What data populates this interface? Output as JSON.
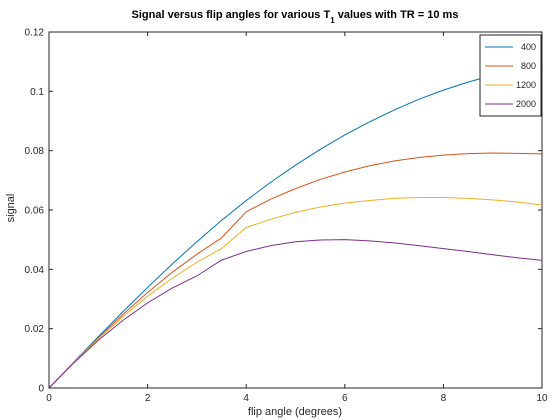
{
  "chart_data": {
    "type": "line",
    "title": {
      "prefix": "Signal versus flip angles for various T",
      "subscript": "1",
      "suffix": " values with TR = 10 ms"
    },
    "xlabel": "flip angle (degrees)",
    "ylabel": "signal",
    "xlim": [
      0,
      10
    ],
    "ylim": [
      0,
      0.12
    ],
    "x_ticks": [
      0,
      2,
      4,
      6,
      8,
      10
    ],
    "y_ticks": [
      0,
      0.02,
      0.04,
      0.06,
      0.08,
      0.1,
      0.12
    ],
    "x_tick_labels": [
      "0",
      "2",
      "4",
      "6",
      "8",
      "10"
    ],
    "y_tick_labels": [
      "0",
      "0.02",
      "0.04",
      "0.06",
      "0.08",
      "0.1",
      "0.12"
    ],
    "grid": false,
    "legend_position": "top-right",
    "x": [
      0,
      0.5,
      1,
      1.5,
      2,
      2.5,
      3,
      3.5,
      4,
      4.5,
      5,
      5.5,
      6,
      6.5,
      7,
      7.5,
      8,
      8.5,
      9,
      9.5,
      10
    ],
    "series": [
      {
        "name": "400",
        "color": "#0072bd",
        "values": [
          0,
          0.0087,
          0.0173,
          0.0257,
          0.0339,
          0.0418,
          0.0493,
          0.0565,
          0.0632,
          0.0694,
          0.0751,
          0.0804,
          0.0853,
          0.0897,
          0.0937,
          0.0973,
          0.1004,
          0.1031,
          0.1054,
          0.1071,
          0.1086
        ]
      },
      {
        "name": "800",
        "color": "#d95319",
        "values": [
          0,
          0.0086,
          0.0169,
          0.0248,
          0.0322,
          0.039,
          0.0451,
          0.0506,
          0.0594,
          0.0637,
          0.0672,
          0.0703,
          0.0728,
          0.0749,
          0.0765,
          0.0777,
          0.0785,
          0.079,
          0.0792,
          0.0791,
          0.0789
        ]
      },
      {
        "name": "1200",
        "color": "#edb120",
        "values": [
          0,
          0.0085,
          0.0166,
          0.0241,
          0.0309,
          0.037,
          0.0424,
          0.047,
          0.0541,
          0.0569,
          0.0592,
          0.061,
          0.0623,
          0.0632,
          0.0639,
          0.0642,
          0.0642,
          0.0639,
          0.0634,
          0.0627,
          0.0617
        ]
      },
      {
        "name": "2000",
        "color": "#7e2f8e",
        "values": [
          0,
          0.0084,
          0.0161,
          0.0228,
          0.0287,
          0.0337,
          0.0378,
          0.0431,
          0.046,
          0.048,
          0.0493,
          0.0499,
          0.05,
          0.0496,
          0.0489,
          0.048,
          0.047,
          0.046,
          0.0449,
          0.0439,
          0.043
        ]
      }
    ]
  }
}
